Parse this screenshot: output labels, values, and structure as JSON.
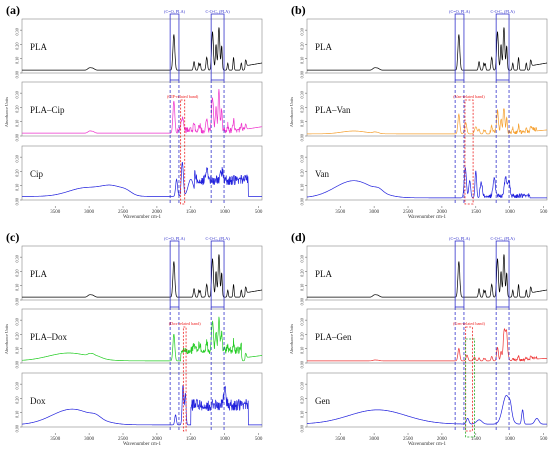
{
  "figure": {
    "panel_letters": [
      "(a)",
      "(b)",
      "(c)",
      "(d)"
    ],
    "axis_ylabel": "Absorbance Units",
    "axis_xlabel": "Wavenumber cm-1",
    "box_labels": {
      "co_pla": "(C=O, PLA)",
      "coc_pla": "C-O-C, (PLA)"
    }
  },
  "chart_data": [
    {
      "type": "line",
      "panel": "(a)",
      "xlabel": "Wavenumber cm-1",
      "ylabel": "Absorbance Units",
      "xlim": [
        3990,
        450
      ],
      "x_ticks": [
        3500,
        3000,
        2500,
        2000,
        1500,
        1000,
        500
      ],
      "subplots": [
        {
          "name": "PLA",
          "color": "#000000",
          "profile": "pla",
          "ylim": [
            0,
            0.35
          ],
          "y_ticks": [
            "0.00",
            "0.10",
            "0.20",
            "0.30"
          ]
        },
        {
          "name": "PLA–Cip",
          "color": "#ee33cc",
          "profile": "plaCip",
          "ylim": [
            0,
            0.35
          ],
          "y_ticks": [
            "0.00",
            "0.10",
            "0.20",
            "0.30"
          ]
        },
        {
          "name": "Cip",
          "color": "#2222dd",
          "profile": "cip",
          "ylim": [
            0,
            0.35
          ],
          "y_ticks": [
            "0.00",
            "0.10",
            "0.20",
            "0.30"
          ]
        }
      ],
      "annotations": [
        {
          "label": "(C=O, PLA)",
          "color": "#3333cc",
          "x_range": [
            1805,
            1675
          ]
        },
        {
          "label": "C-O-C, (PLA)",
          "color": "#3333cc",
          "x_range": [
            1200,
            1010
          ]
        },
        {
          "label": "(CIP-related band)",
          "color": "#ee2222",
          "x_range": [
            1650,
            1590
          ]
        }
      ]
    },
    {
      "type": "line",
      "panel": "(b)",
      "xlabel": "Wavenumber cm-1",
      "ylabel": "Absorbance Units",
      "xlim": [
        3990,
        450
      ],
      "x_ticks": [
        3500,
        3000,
        2500,
        2000,
        1500,
        1000,
        500
      ],
      "subplots": [
        {
          "name": "PLA",
          "color": "#000000",
          "profile": "pla",
          "ylim": [
            0,
            0.35
          ],
          "y_ticks": [
            "0.00",
            "0.10",
            "0.20",
            "0.30"
          ]
        },
        {
          "name": "PLA–Van",
          "color": "#f5a030",
          "profile": "plaVan",
          "ylim": [
            0,
            0.35
          ],
          "y_ticks": [
            "0.00",
            "0.10",
            "0.20",
            "0.30"
          ]
        },
        {
          "name": "Van",
          "color": "#2222dd",
          "profile": "van",
          "ylim": [
            0,
            0.35
          ],
          "y_ticks": [
            "0.00",
            "0.10",
            "0.20",
            "0.30"
          ]
        }
      ],
      "annotations": [
        {
          "label": "(C=O, PLA)",
          "color": "#3333cc",
          "x_range": [
            1805,
            1675
          ]
        },
        {
          "label": "C-O-C, (PLA)",
          "color": "#3333cc",
          "x_range": [
            1200,
            1010
          ]
        },
        {
          "label": "(Van-related band)",
          "color": "#ee2222",
          "x_range": [
            1660,
            1540
          ]
        }
      ]
    },
    {
      "type": "line",
      "panel": "(c)",
      "xlabel": "Wavenumber cm-1",
      "ylabel": "Absorbance Units",
      "xlim": [
        3990,
        450
      ],
      "x_ticks": [
        3500,
        3000,
        2500,
        2000,
        1500,
        1000,
        500
      ],
      "subplots": [
        {
          "name": "PLA",
          "color": "#000000",
          "profile": "pla",
          "ylim": [
            0,
            0.35
          ],
          "y_ticks": [
            "0.00",
            "0.10",
            "0.20",
            "0.30"
          ]
        },
        {
          "name": "PLA–Dox",
          "color": "#22cc22",
          "profile": "plaDox",
          "ylim": [
            0,
            0.35
          ],
          "y_ticks": [
            "0.00",
            "0.10",
            "0.20",
            "0.30"
          ]
        },
        {
          "name": "Dox",
          "color": "#2222dd",
          "profile": "dox",
          "ylim": [
            0,
            0.35
          ],
          "y_ticks": [
            "0.00",
            "0.10",
            "0.20",
            "0.30"
          ]
        }
      ],
      "annotations": [
        {
          "label": "(C=O, PLA)",
          "color": "#3333cc",
          "x_range": [
            1805,
            1675
          ]
        },
        {
          "label": "C-O-C, (PLA)",
          "color": "#3333cc",
          "x_range": [
            1200,
            1010
          ]
        },
        {
          "label": "(Dox-related band)",
          "color": "#ee2222",
          "x_range": [
            1610,
            1570
          ]
        }
      ]
    },
    {
      "type": "line",
      "panel": "(d)",
      "xlabel": "Wavenumber cm-1",
      "ylabel": "Absorbance Units",
      "xlim": [
        3990,
        450
      ],
      "x_ticks": [
        3500,
        3000,
        2500,
        2000,
        1500,
        1000,
        500
      ],
      "subplots": [
        {
          "name": "PLA",
          "color": "#000000",
          "profile": "pla",
          "ylim": [
            0,
            0.35
          ],
          "y_ticks": [
            "0.00",
            "0.10",
            "0.20",
            "0.30"
          ]
        },
        {
          "name": "PLA–Gen",
          "color": "#ee3333",
          "profile": "plaGen",
          "ylim": [
            0,
            0.35
          ],
          "y_ticks": [
            "0.00",
            "0.10",
            "0.20",
            "0.30"
          ]
        },
        {
          "name": "Gen",
          "color": "#2222dd",
          "profile": "gen",
          "ylim": [
            0,
            0.35
          ],
          "y_ticks": [
            "0.00",
            "0.10",
            "0.20",
            "0.30"
          ]
        }
      ],
      "annotations": [
        {
          "label": "(C=O, PLA)",
          "color": "#3333cc",
          "x_range": [
            1805,
            1675
          ]
        },
        {
          "label": "C-O-C, (PLA)",
          "color": "#3333cc",
          "x_range": [
            1200,
            1010
          ]
        },
        {
          "label": "(Gen-related band)",
          "color": "#ee2222",
          "x_range": [
            1650,
            1550
          ]
        },
        {
          "label": "",
          "color": "#22aa22",
          "x_range": [
            1650,
            1520
          ]
        }
      ]
    }
  ]
}
